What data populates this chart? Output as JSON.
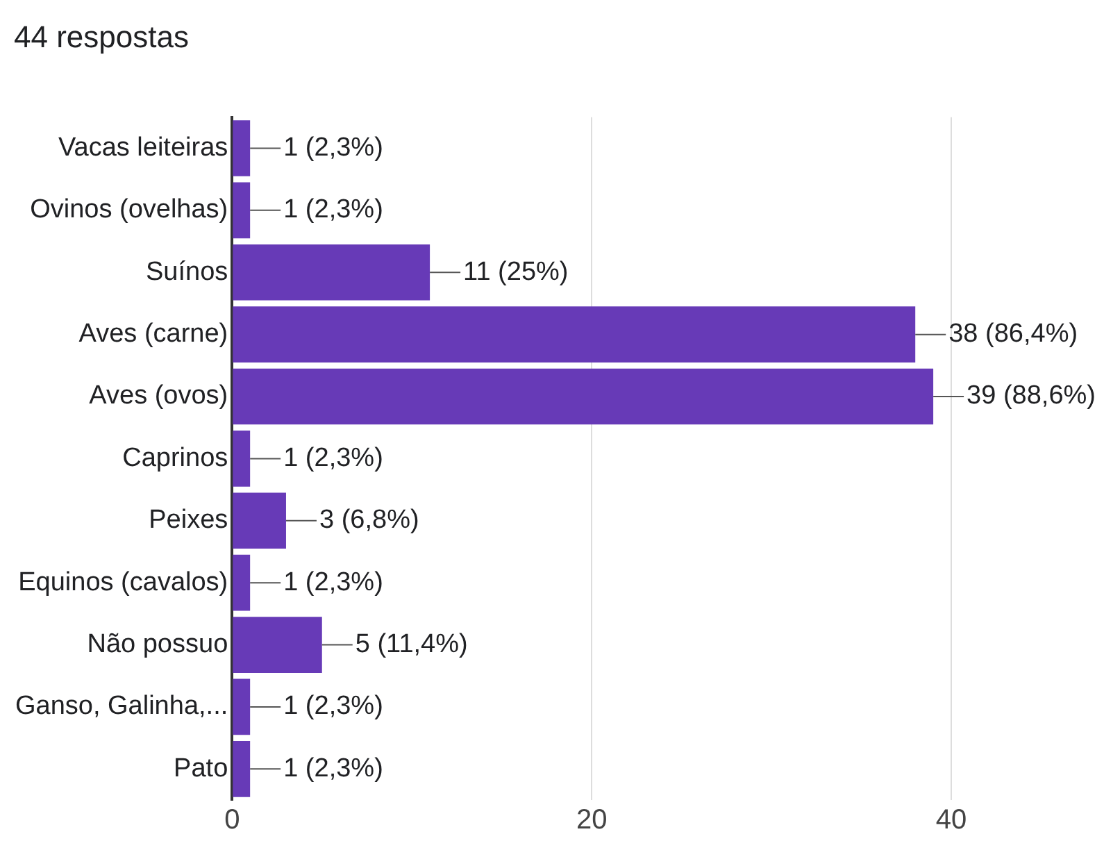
{
  "chart_data": {
    "type": "bar",
    "orientation": "horizontal",
    "title": "44 respostas",
    "categories": [
      "Vacas leiteiras",
      "Ovinos (ovelhas)",
      "Suínos",
      "Aves (carne)",
      "Aves (ovos)",
      "Caprinos",
      "Peixes",
      "Equinos (cavalos)",
      "Não possuo",
      "Ganso, Galinha,...",
      "Pato"
    ],
    "values": [
      1,
      1,
      11,
      38,
      39,
      1,
      3,
      1,
      5,
      1,
      1
    ],
    "value_labels": [
      "1 (2,3%)",
      "1 (2,3%)",
      "11 (25%)",
      "38 (86,4%)",
      "39 (88,6%)",
      "1 (2,3%)",
      "3 (6,8%)",
      "1 (2,3%)",
      "5 (11,4%)",
      "1 (2,3%)",
      "1 (2,3%)"
    ],
    "color": "#673ab7",
    "xlim": [
      0,
      40
    ],
    "xticks": [
      0,
      20,
      40
    ],
    "grid": "x",
    "legend": false
  }
}
